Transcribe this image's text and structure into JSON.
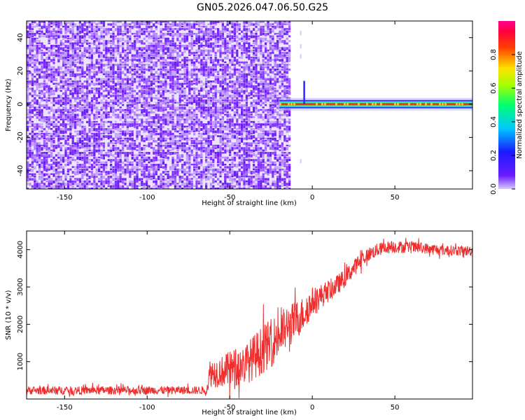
{
  "figure_title": "GN05.2026.047.06.50.G25",
  "chart_data": [
    {
      "type": "heatmap",
      "title": "",
      "xlabel": "Height of straight line (km)",
      "ylabel": "Frequency (Hz)",
      "xlim": [
        -173,
        97
      ],
      "ylim": [
        -51,
        50
      ],
      "xticks": [
        -150,
        -100,
        -50,
        0,
        50
      ],
      "yticks": [
        -40,
        -20,
        0,
        20,
        40
      ],
      "grid": false,
      "colorbar": {
        "label": "Normalized spectral amplitude",
        "range": [
          0,
          1
        ],
        "ticks": [
          "0.0",
          "0.2",
          "0.4",
          "0.6",
          "0.8"
        ],
        "colormap": "rainbow (purple → blue → cyan → green → yellow → orange → red → magenta)"
      },
      "regions": [
        {
          "name": "broadband noise",
          "x_range": [
            -173,
            -14
          ],
          "freq_range": [
            -50,
            50
          ],
          "amplitude": 0.05
        },
        {
          "name": "carrier line",
          "x_range": [
            -20,
            97
          ],
          "freq_hz": 0,
          "peak_amplitude": 0.85
        }
      ],
      "colors": {
        "noise": "#7b2cff",
        "line_core": "#ff2a1a",
        "line_edge": "#35d4ff"
      }
    },
    {
      "type": "line",
      "title": "",
      "xlabel": "Height of straight line (km)",
      "ylabel": "SNR (10 * v/v)",
      "xlim": [
        -173,
        97
      ],
      "ylim": [
        0,
        4500
      ],
      "xticks": [
        -150,
        -100,
        -50,
        0,
        50
      ],
      "yticks": [
        1000,
        2000,
        3000,
        4000
      ],
      "grid": false,
      "series": [
        {
          "color": "#ef2d2d",
          "x": [
            -173,
            -150,
            -120,
            -90,
            -64,
            -62,
            -55,
            -48,
            -40,
            -32,
            -25,
            -18,
            -10,
            -5,
            0,
            5,
            10,
            15,
            20,
            25,
            30,
            35,
            40,
            45,
            50,
            55,
            60,
            65,
            70,
            75,
            80,
            85,
            90,
            97
          ],
          "y": [
            230,
            230,
            230,
            235,
            235,
            700,
            730,
            820,
            950,
            1250,
            1500,
            1800,
            2100,
            2300,
            2600,
            2750,
            2900,
            3050,
            3250,
            3500,
            3750,
            3900,
            4000,
            4060,
            4080,
            4070,
            4060,
            4050,
            4030,
            4000,
            3980,
            3980,
            3970,
            3970
          ],
          "noise_amplitude": [
            110,
            110,
            110,
            110,
            110,
            380,
            420,
            520,
            560,
            640,
            650,
            620,
            540,
            460,
            390,
            330,
            300,
            270,
            250,
            230,
            210,
            190,
            180,
            170,
            170,
            160,
            160,
            150,
            150,
            150,
            140,
            140,
            140,
            140
          ]
        }
      ]
    }
  ]
}
